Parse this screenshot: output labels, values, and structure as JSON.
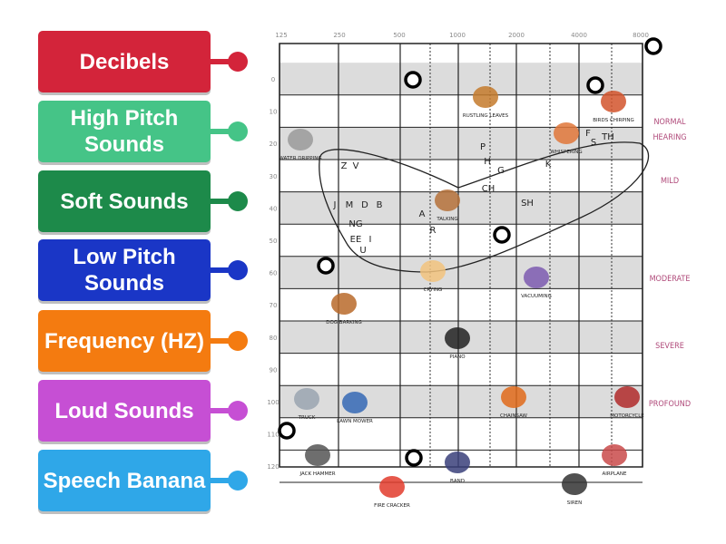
{
  "tiles": [
    "Decibels",
    "High Pitch Sounds",
    "Soft Sounds",
    "Low Pitch Sounds",
    "Frequency (HZ)",
    "Loud Sounds",
    "Speech Banana"
  ],
  "audiogram": {
    "frequencies": [
      "125",
      "250",
      "500",
      "1000",
      "2000",
      "4000",
      "8000"
    ],
    "decibels": [
      "0",
      "10",
      "20",
      "30",
      "40",
      "50",
      "60",
      "70",
      "80",
      "90",
      "100",
      "110",
      "120"
    ],
    "sounds": [
      "RUSTLING LEAVES",
      "BIRDS CHIRPING",
      "WATER DRIPPING",
      "WHISPERING",
      "TALKING",
      "DOG BARKING",
      "CRYING",
      "VACUUMING",
      "PIANO",
      "TRUCK",
      "LAWN MOWER",
      "CHAINSAW",
      "MOTORCYCLE",
      "JACK HAMMER",
      "FIRE CRACKER",
      "BAND",
      "SIREN",
      "AIRPLANE"
    ],
    "speech_sounds": [
      "Z",
      "V",
      "J",
      "M",
      "D",
      "B",
      "NG",
      "EE",
      "I",
      "U",
      "A",
      "R",
      "P",
      "H",
      "G",
      "CH",
      "SH",
      "K",
      "F",
      "S",
      "TH"
    ],
    "hearing_levels": [
      "NORMAL HEARING",
      "MILD",
      "MODERATE",
      "SEVERE",
      "PROFOUND"
    ]
  }
}
